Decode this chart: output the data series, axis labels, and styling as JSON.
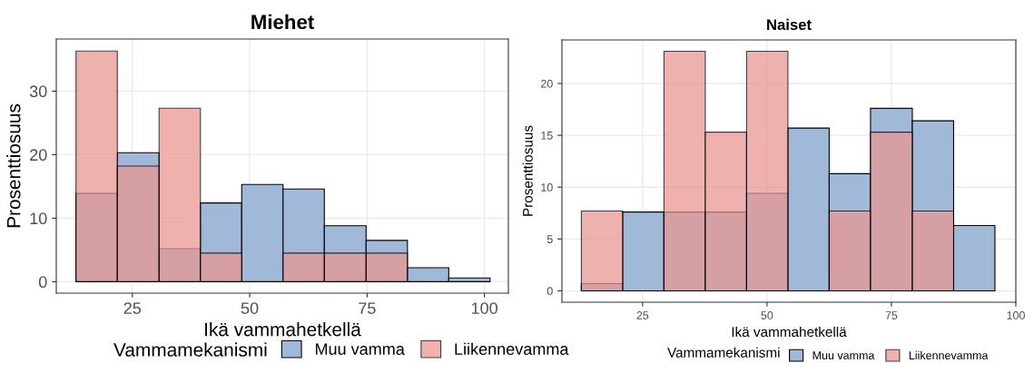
{
  "chart_data": [
    {
      "type": "histogram",
      "title": "Miehet",
      "xlabel": "Ikä vammahetkellä",
      "ylabel": "Prosenttiosuus",
      "legend_title": "Vammamekanismi",
      "legend": "bottom",
      "grid": true,
      "bins": [
        13.0,
        21.8,
        30.7,
        39.5,
        48.3,
        57.1,
        65.9,
        74.8,
        83.6,
        92.4,
        101.2
      ],
      "series": [
        {
          "name": "Muu vamma",
          "color": "#a0b9d9",
          "values": [
            13.9,
            20.3,
            5.2,
            12.4,
            15.3,
            14.6,
            8.8,
            6.5,
            2.2,
            0.6
          ]
        },
        {
          "name": "Liikennevamma",
          "color": "#e99793",
          "values": [
            36.3,
            18.2,
            27.3,
            4.5,
            0,
            4.5,
            4.5,
            4.5,
            0,
            0
          ]
        }
      ],
      "xlim": [
        8.8,
        105.1
      ],
      "xticks": [
        25,
        50,
        75,
        100
      ],
      "ylim": [
        -1.8,
        38.2
      ],
      "yticks": [
        0,
        10,
        20,
        30
      ]
    },
    {
      "type": "histogram",
      "title": "Naiset",
      "xlabel": "Ikä vammahetkellä",
      "ylabel": "Prosenttiosuus",
      "legend_title": "Vammamekanismi",
      "legend": "bottom",
      "grid": true,
      "bins": [
        12.7,
        21.0,
        29.3,
        37.6,
        45.9,
        54.2,
        62.5,
        70.8,
        79.2,
        87.5,
        95.8
      ],
      "series": [
        {
          "name": "Muu vamma",
          "color": "#a0b9d9",
          "values": [
            0.7,
            7.6,
            7.6,
            7.6,
            9.4,
            15.7,
            11.3,
            17.6,
            16.4,
            6.3
          ]
        },
        {
          "name": "Liikennevamma",
          "color": "#e99793",
          "values": [
            7.7,
            0,
            23.1,
            15.3,
            23.1,
            0,
            7.7,
            15.3,
            7.7,
            0
          ]
        }
      ],
      "xlim": [
        8.8,
        100
      ],
      "xticks": [
        25,
        50,
        75,
        100
      ],
      "ylim": [
        -1.1,
        24.2
      ],
      "yticks": [
        0,
        5,
        10,
        15,
        20
      ]
    }
  ]
}
